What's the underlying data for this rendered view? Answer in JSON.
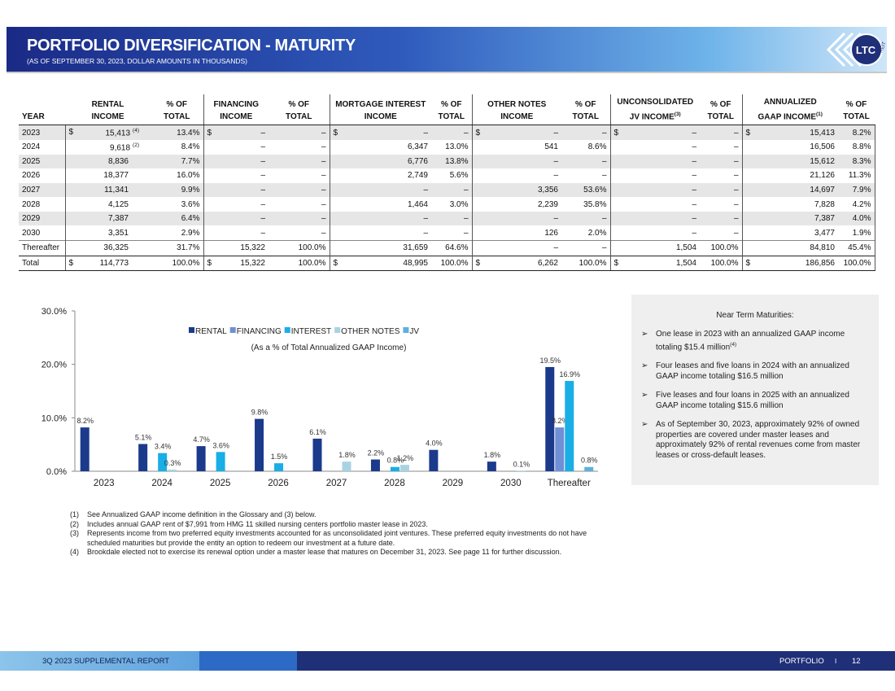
{
  "header": {
    "title": "PORTFOLIO DIVERSIFICATION - MATURITY",
    "subtitle": "(AS OF SEPTEMBER 30, 2023, DOLLAR AMOUNTS IN THOUSANDS)",
    "logo": {
      "name": "LTC",
      "tag": "REIT"
    }
  },
  "table": {
    "columns": [
      {
        "bottom": "YEAR"
      },
      {
        "top": "RENTAL",
        "bottom": "INCOME"
      },
      {
        "top": "% OF",
        "bottom": "TOTAL"
      },
      {
        "top": "FINANCING",
        "bottom": "INCOME"
      },
      {
        "top": "% OF",
        "bottom": "TOTAL"
      },
      {
        "top": "MORTGAGE INTEREST",
        "bottom": "INCOME"
      },
      {
        "top": "% OF",
        "bottom": "TOTAL"
      },
      {
        "top": "OTHER NOTES",
        "bottom": "INCOME"
      },
      {
        "top": "% OF",
        "bottom": "TOTAL"
      },
      {
        "top": "UNCONSOLIDATED",
        "bottom": "JV INCOME",
        "note": "(3)"
      },
      {
        "top": "% OF",
        "bottom": "TOTAL"
      },
      {
        "top": "ANNUALIZED",
        "bottom": "GAAP INCOME",
        "note": "(1)"
      },
      {
        "top": "% OF",
        "bottom": "TOTAL"
      }
    ],
    "rows": [
      {
        "label": "2023",
        "currency": "$",
        "note": "(4)",
        "cells": [
          "15,413",
          "13.4%",
          "–",
          "–",
          "–",
          "–",
          "–",
          "–",
          "–",
          "–",
          "15,413",
          "8.2%"
        ]
      },
      {
        "label": "2024",
        "note": "(2)",
        "cells": [
          "9,618",
          "8.4%",
          "–",
          "–",
          "6,347",
          "13.0%",
          "541",
          "8.6%",
          "–",
          "–",
          "16,506",
          "8.8%"
        ]
      },
      {
        "label": "2025",
        "cells": [
          "8,836",
          "7.7%",
          "–",
          "–",
          "6,776",
          "13.8%",
          "–",
          "–",
          "–",
          "–",
          "15,612",
          "8.3%"
        ]
      },
      {
        "label": "2026",
        "cells": [
          "18,377",
          "16.0%",
          "–",
          "–",
          "2,749",
          "5.6%",
          "–",
          "–",
          "–",
          "–",
          "21,126",
          "11.3%"
        ]
      },
      {
        "label": "2027",
        "cells": [
          "11,341",
          "9.9%",
          "–",
          "–",
          "–",
          "–",
          "3,356",
          "53.6%",
          "–",
          "–",
          "14,697",
          "7.9%"
        ]
      },
      {
        "label": "2028",
        "cells": [
          "4,125",
          "3.6%",
          "–",
          "–",
          "1,464",
          "3.0%",
          "2,239",
          "35.8%",
          "–",
          "–",
          "7,828",
          "4.2%"
        ]
      },
      {
        "label": "2029",
        "cells": [
          "7,387",
          "6.4%",
          "–",
          "–",
          "–",
          "–",
          "–",
          "–",
          "–",
          "–",
          "7,387",
          "4.0%"
        ]
      },
      {
        "label": "2030",
        "cells": [
          "3,351",
          "2.9%",
          "–",
          "–",
          "–",
          "–",
          "126",
          "2.0%",
          "–",
          "–",
          "3,477",
          "1.9%"
        ]
      },
      {
        "label": "Thereafter",
        "cells": [
          "36,325",
          "31.7%",
          "15,322",
          "100.0%",
          "31,659",
          "64.6%",
          "–",
          "–",
          "1,504",
          "100.0%",
          "84,810",
          "45.4%"
        ]
      },
      {
        "label": "Total",
        "currency": "$",
        "cells": [
          "114,773",
          "100.0%",
          "15,322",
          "100.0%",
          "48,995",
          "100.0%",
          "6,262",
          "100.0%",
          "1,504",
          "100.0%",
          "186,856",
          "100.0%"
        ]
      }
    ]
  },
  "chart_data": {
    "type": "bar",
    "subtitle": "(As a % of Total Annualized GAAP Income)",
    "categories": [
      "2023",
      "2024",
      "2025",
      "2026",
      "2027",
      "2028",
      "2029",
      "2030",
      "Thereafter"
    ],
    "series": [
      {
        "name": "RENTAL",
        "color": "#1b3a8c",
        "values": [
          8.2,
          5.1,
          4.7,
          9.8,
          6.1,
          2.2,
          4.0,
          1.8,
          19.5
        ],
        "value_labels": [
          "8.2%",
          "5.1%",
          "4.7%",
          "9.8%",
          "6.1%",
          "2.2%",
          "4.0%",
          "1.8%",
          "19.5%"
        ]
      },
      {
        "name": "FINANCING",
        "color": "#6f8fd6",
        "values": [
          null,
          null,
          null,
          null,
          null,
          null,
          null,
          null,
          8.2
        ],
        "value_labels": [
          null,
          null,
          null,
          null,
          null,
          null,
          null,
          null,
          "8.2%"
        ]
      },
      {
        "name": "INTEREST",
        "color": "#1aaee6",
        "values": [
          null,
          3.4,
          3.6,
          1.5,
          null,
          0.8,
          null,
          null,
          16.9
        ],
        "value_labels": [
          null,
          "3.4%",
          "3.6%",
          "1.5%",
          null,
          "0.8%",
          null,
          null,
          "16.9%"
        ]
      },
      {
        "name": "OTHER NOTES",
        "color": "#a9d3e3",
        "values": [
          null,
          0.3,
          null,
          null,
          1.8,
          1.2,
          null,
          0.1,
          null
        ],
        "value_labels": [
          null,
          "0.3%",
          null,
          null,
          "1.8%",
          "1.2%",
          null,
          "0.1%",
          null
        ]
      },
      {
        "name": "JV",
        "color": "#5fb0dc",
        "values": [
          null,
          null,
          null,
          null,
          null,
          null,
          null,
          null,
          0.8
        ],
        "value_labels": [
          null,
          null,
          null,
          null,
          null,
          null,
          null,
          null,
          "0.8%"
        ]
      }
    ],
    "ylim": [
      0,
      30
    ],
    "yticks": [
      {
        "value": 0,
        "label": "0.0%"
      },
      {
        "value": 10,
        "label": "10.0%"
      },
      {
        "value": 20,
        "label": "20.0%"
      },
      {
        "value": 30,
        "label": "30.0%"
      }
    ]
  },
  "sidebar": {
    "title": "Near Term Maturities:",
    "bullets": [
      {
        "text": "One lease in 2023 with an annualized GAAP income totaling $15.4 million",
        "note": "(4)"
      },
      {
        "text": "Four leases and five loans in 2024 with an annualized GAAP income totaling $16.5 million"
      },
      {
        "text": "Five leases and four loans in 2025 with an annualized GAAP income totaling $15.6 million"
      },
      {
        "text": "As of September 30, 2023, approximately 92% of owned properties are covered under master leases and approximately 92% of rental revenues come from master leases or cross-default leases."
      }
    ]
  },
  "footnotes": [
    {
      "num": "(1)",
      "text": "See Annualized GAAP income definition in the Glossary and (3) below."
    },
    {
      "num": "(2)",
      "text": "Includes annual GAAP rent of $7,991 from HMG 11 skilled nursing centers portfolio master lease in 2023."
    },
    {
      "num": "(3)",
      "text": "Represents income from two preferred equity investments accounted for as unconsolidated joint ventures. These preferred equity investments do not have scheduled maturities but provide the entity an option to redeem our investment at a future date."
    },
    {
      "num": "(4)",
      "text": "Brookdale elected not to exercise its renewal option under a master lease that matures on December 31, 2023. See page 11 for further discussion."
    }
  ],
  "footer": {
    "report": "3Q 2023 SUPPLEMENTAL REPORT",
    "section": "PORTFOLIO",
    "separator": "I",
    "page": "12"
  }
}
